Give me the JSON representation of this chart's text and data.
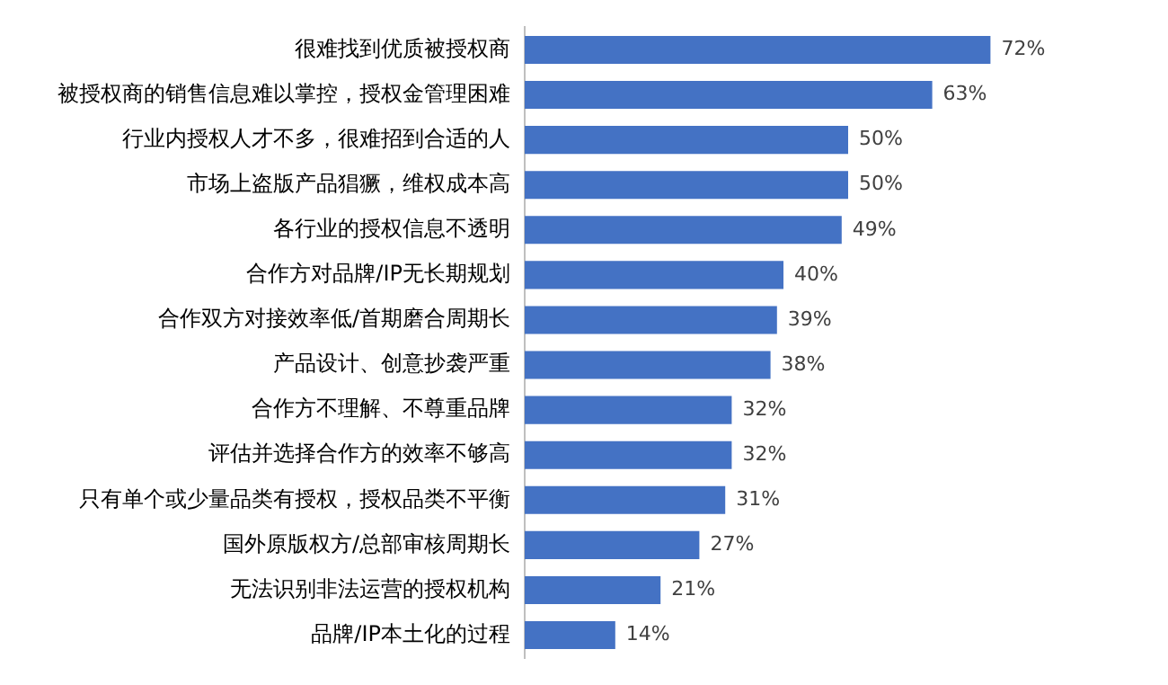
{
  "chart_data": {
    "type": "bar",
    "orientation": "horizontal",
    "categories": [
      "很难找到优质被授权商",
      "被授权商的销售信息难以掌控，授权金管理困难",
      "行业内授权人才不多，很难招到合适的人",
      "市场上盗版产品猖獗，维权成本高",
      "各行业的授权信息不透明",
      "合作方对品牌/IP无长期规划",
      "合作双方对接效率低/首期磨合周期长",
      "产品设计、创意抄袭严重",
      "合作方不理解、不尊重品牌",
      "评估并选择合作方的效率不够高",
      "只有单个或少量品类有授权，授权品类不平衡",
      "国外原版权方/总部审核周期长",
      "无法识别非法运营的授权机构",
      "品牌/IP本土化的过程"
    ],
    "values": [
      72,
      63,
      50,
      50,
      49,
      40,
      39,
      38,
      32,
      32,
      31,
      27,
      21,
      14
    ],
    "value_labels": [
      "72%",
      "63%",
      "50%",
      "50%",
      "49%",
      "40%",
      "39%",
      "38%",
      "32%",
      "32%",
      "31%",
      "27%",
      "21%",
      "14%"
    ],
    "color": "#4472c4",
    "legend": false
  }
}
